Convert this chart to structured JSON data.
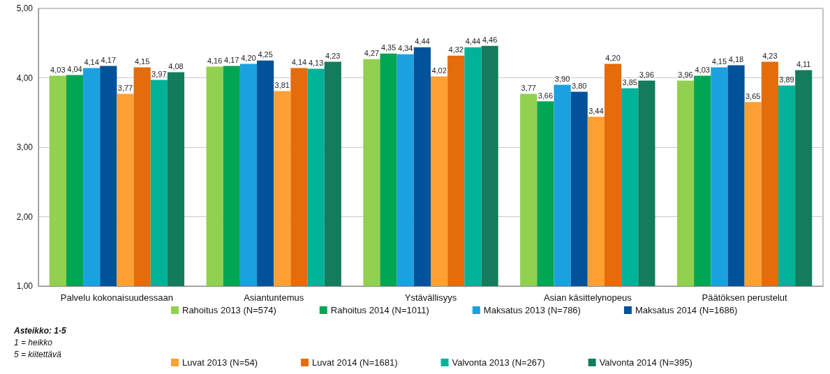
{
  "chart_data": {
    "type": "bar",
    "categories": [
      "Palvelu kokonaisuudessaan",
      "Asiantuntemus",
      "Ystävällisyys",
      "Asian käsittelynopeus",
      "Päätöksen perustelut"
    ],
    "ylim": [
      1,
      5
    ],
    "yticks": [
      {
        "value": 1,
        "label": "1,00"
      },
      {
        "value": 2,
        "label": "2,00"
      },
      {
        "value": 3,
        "label": "3,00"
      },
      {
        "value": 4,
        "label": "4,00"
      },
      {
        "value": 5,
        "label": "5,00"
      }
    ],
    "grid": "y",
    "legend": "bottom",
    "series": [
      {
        "name": "Rahoitus 2013 (N=574)",
        "color": "#92d050",
        "values": [
          4.03,
          4.16,
          4.27,
          3.77,
          3.96
        ],
        "value_labels": [
          "4,03",
          "4,16",
          "4,27",
          "3,77",
          "3,96"
        ]
      },
      {
        "name": "Rahoitus 2014 (N=1011)",
        "color": "#00a651",
        "values": [
          4.04,
          4.17,
          4.35,
          3.66,
          4.03
        ],
        "value_labels": [
          "4,04",
          "4,17",
          "4,35",
          "3,66",
          "4,03"
        ]
      },
      {
        "name": "Maksatus 2013 (N=786)",
        "color": "#1ca1e0",
        "values": [
          4.14,
          4.2,
          4.34,
          3.9,
          4.15
        ],
        "value_labels": [
          "4,14",
          "4,20",
          "4,34",
          "3,90",
          "4,15"
        ]
      },
      {
        "name": "Maksatus 2014 (N=1686)",
        "color": "#00529b",
        "values": [
          4.17,
          4.25,
          4.44,
          3.8,
          4.18
        ],
        "value_labels": [
          "4,17",
          "4,25",
          "4,44",
          "3,80",
          "4,18"
        ]
      },
      {
        "name": "Luvat 2013 (N=54)",
        "color": "#ffa033",
        "values": [
          3.77,
          3.81,
          4.02,
          3.44,
          3.65
        ],
        "value_labels": [
          "3,77",
          "3,81",
          "4,02",
          "3,44",
          "3,65"
        ]
      },
      {
        "name": "Luvat 2014 (N=1681)",
        "color": "#e46c0a",
        "values": [
          4.15,
          4.14,
          4.32,
          4.2,
          4.23
        ],
        "value_labels": [
          "4,15",
          "4,14",
          "4,32",
          "4,20",
          "4,23"
        ]
      },
      {
        "name": "Valvonta 2013 (N=267)",
        "color": "#00b398",
        "values": [
          3.97,
          4.13,
          4.44,
          3.85,
          3.89
        ],
        "value_labels": [
          "3,97",
          "4,13",
          "4,44",
          "3,85",
          "3,89"
        ]
      },
      {
        "name": "Valvonta 2014 (N=395)",
        "color": "#127c5c",
        "values": [
          4.08,
          4.23,
          4.46,
          3.96,
          4.11
        ],
        "value_labels": [
          "4,08",
          "4,23",
          "4,46",
          "3,96",
          "4,11"
        ]
      }
    ],
    "annotations": [
      "Asteikko: 1-5",
      "1 = heikko",
      "5 = kiitettävä"
    ]
  }
}
